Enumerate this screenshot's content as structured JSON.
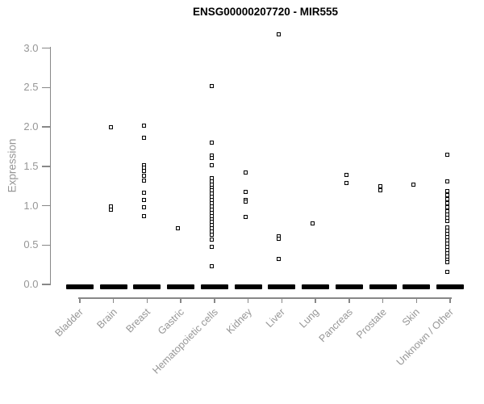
{
  "chart": {
    "title": "ENSG00000207720 - MIR555",
    "y_axis_label": "Expression"
  },
  "colors": {
    "marker": "#000000",
    "axis": "#888888",
    "tick_label": "#969696",
    "title": "#000000"
  },
  "chart_data": {
    "type": "scatter",
    "title": "ENSG00000207720 - MIR555",
    "xlabel": "",
    "ylabel": "Expression",
    "ylim": [
      0,
      3.0
    ],
    "yticks": [
      0.0,
      0.5,
      1.0,
      1.5,
      2.0,
      2.5,
      3.0
    ],
    "grid": false,
    "legend": "none",
    "marker": "open-square",
    "note": "Strip plot of expression per tissue; every category also has a dense cluster of many points at 0 rendered as a thick black dash on the baseline.",
    "categories": [
      "Bladder",
      "Brain",
      "Breast",
      "Gastric",
      "Hematopoietic cells",
      "Kidney",
      "Liver",
      "Lung",
      "Pancreas",
      "Prostate",
      "Skin",
      "Unknown / Other"
    ],
    "series": [
      {
        "name": "Bladder",
        "zero_cluster": true,
        "values": []
      },
      {
        "name": "Brain",
        "zero_cluster": true,
        "values": [
          1.99,
          0.99,
          0.95
        ]
      },
      {
        "name": "Breast",
        "zero_cluster": true,
        "values": [
          2.02,
          1.86,
          1.51,
          1.48,
          1.44,
          1.38,
          1.32,
          1.16,
          1.07,
          0.98,
          0.87
        ]
      },
      {
        "name": "Gastric",
        "zero_cluster": true,
        "values": [
          0.71
        ]
      },
      {
        "name": "Hematopoietic cells",
        "zero_cluster": true,
        "values": [
          2.52,
          1.8,
          1.64,
          1.61,
          1.51,
          1.35,
          1.31,
          1.27,
          1.23,
          1.19,
          1.15,
          1.11,
          1.07,
          1.03,
          0.99,
          0.95,
          0.91,
          0.87,
          0.83,
          0.79,
          0.75,
          0.71,
          0.67,
          0.63,
          0.57,
          0.48,
          0.23
        ]
      },
      {
        "name": "Kidney",
        "zero_cluster": true,
        "values": [
          1.42,
          1.17,
          1.07,
          1.05,
          0.86
        ]
      },
      {
        "name": "Liver",
        "zero_cluster": true,
        "values": [
          3.17,
          0.61,
          0.58,
          0.32
        ]
      },
      {
        "name": "Lung",
        "zero_cluster": true,
        "values": [
          0.77
        ]
      },
      {
        "name": "Pancreas",
        "zero_cluster": true,
        "values": [
          1.39,
          1.29
        ]
      },
      {
        "name": "Prostate",
        "zero_cluster": true,
        "values": [
          1.25,
          1.19
        ]
      },
      {
        "name": "Skin",
        "zero_cluster": true,
        "values": [
          1.27
        ]
      },
      {
        "name": "Unknown / Other",
        "zero_cluster": true,
        "values": [
          1.65,
          1.31,
          1.18,
          1.13,
          1.08,
          1.03,
          0.98,
          0.93,
          0.89,
          0.85,
          0.81,
          0.72,
          0.68,
          0.64,
          0.6,
          0.56,
          0.52,
          0.48,
          0.44,
          0.39,
          0.35,
          0.31,
          0.28,
          0.16
        ]
      }
    ]
  }
}
